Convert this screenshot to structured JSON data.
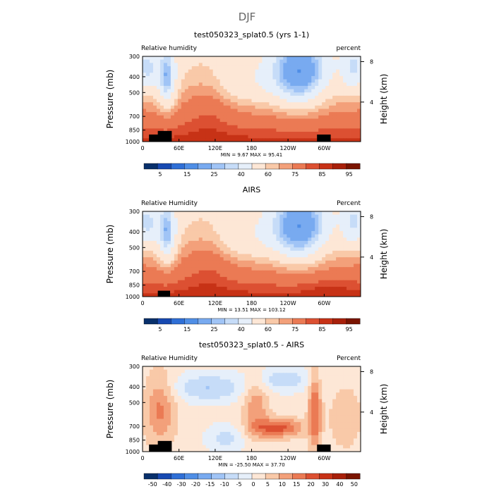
{
  "page": {
    "season": "DJF"
  },
  "colors": {
    "scale": [
      "#08306b",
      "#1749b1",
      "#2f6fd6",
      "#4f8ee6",
      "#78aaf0",
      "#a0c4f6",
      "#c6dcf8",
      "#e6effa",
      "#fde7d6",
      "#f9c9a8",
      "#f3a07a",
      "#eb7a54",
      "#dc5032",
      "#c73216",
      "#a8200a",
      "#7a1400"
    ],
    "land": "#000000"
  },
  "panels": [
    {
      "title": "test050323_splat0.5 (yrs 1-1)",
      "left_label": "Relative humidity",
      "right_label": "percent",
      "stats": "MIN =    9.67   MAX =   95.41",
      "colorbar_labels": [
        "5",
        "15",
        "25",
        "40",
        "60",
        "75",
        "85",
        "95"
      ]
    },
    {
      "title": "AIRS",
      "left_label": "Relative Humidity",
      "right_label": "Percent",
      "stats": "MIN =   13.51   MAX =  103.12",
      "colorbar_labels": [
        "5",
        "15",
        "25",
        "40",
        "60",
        "75",
        "85",
        "95"
      ]
    },
    {
      "title": "test050323_splat0.5 - AIRS",
      "left_label": "Relative Humidity",
      "right_label": "Percent",
      "stats": "MIN =  -25.50   MAX =   37.70",
      "colorbar_labels": [
        "-50",
        "-40",
        "-30",
        "-20",
        "-15",
        "-10",
        "-5",
        "0",
        "5",
        "10",
        "15",
        "20",
        "30",
        "40",
        "50"
      ]
    }
  ],
  "chart_data": [
    {
      "type": "heatmap",
      "title": "test050323_splat0.5 (yrs 1-1)",
      "xlabel": "",
      "ylabel": "Pressure (mb)",
      "y2label": "Height (km)",
      "x_ticks": [
        "0",
        "60E",
        "120E",
        "180",
        "120W",
        "60W"
      ],
      "y_ticks": [
        300,
        400,
        500,
        700,
        850,
        1000
      ],
      "y2_ticks": [
        8,
        4
      ],
      "ylim": [
        1000,
        300
      ],
      "min": 9.67,
      "max": 95.41
    },
    {
      "type": "heatmap",
      "title": "AIRS",
      "xlabel": "",
      "ylabel": "Pressure (mb)",
      "y2label": "Height (km)",
      "x_ticks": [
        "0",
        "60E",
        "120E",
        "180",
        "120W",
        "60W"
      ],
      "y_ticks": [
        300,
        400,
        500,
        700,
        850,
        1000
      ],
      "y2_ticks": [
        8,
        4
      ],
      "ylim": [
        1000,
        300
      ],
      "min": 13.51,
      "max": 103.12
    },
    {
      "type": "heatmap",
      "title": "test050323_splat0.5 - AIRS",
      "xlabel": "",
      "ylabel": "Pressure (mb)",
      "y2label": "Height (km)",
      "x_ticks": [
        "0",
        "60E",
        "120E",
        "180",
        "120W",
        "60W"
      ],
      "y_ticks": [
        300,
        400,
        500,
        700,
        850,
        1000
      ],
      "y2_ticks": [
        8,
        4
      ],
      "ylim": [
        1000,
        300
      ],
      "min": -25.5,
      "max": 37.7
    }
  ]
}
